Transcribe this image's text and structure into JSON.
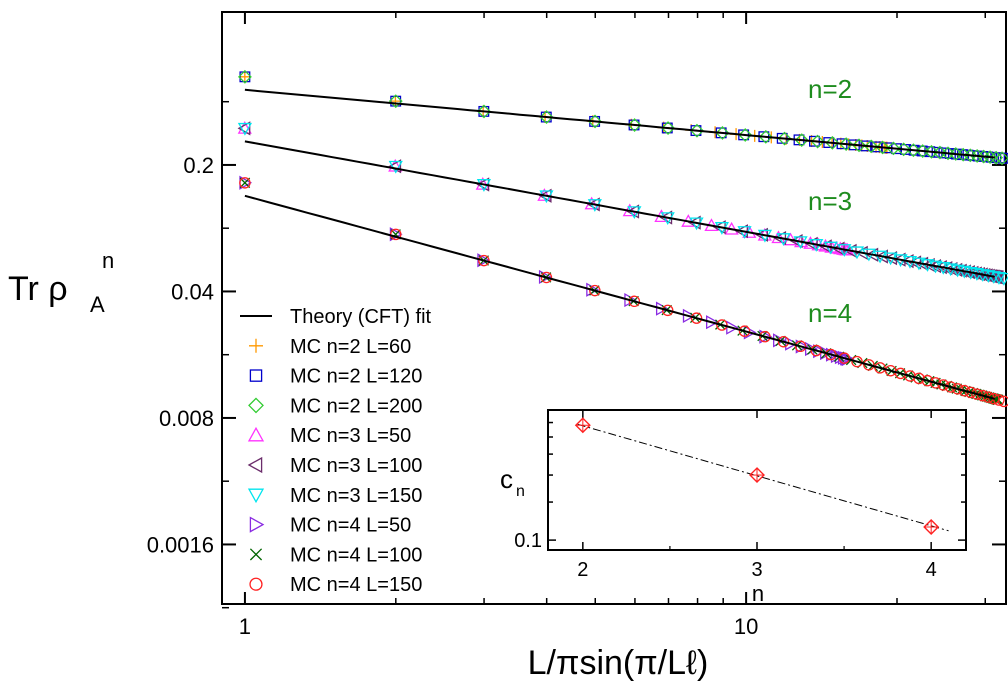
{
  "chart_data": [
    {
      "type": "scatter",
      "xlabel": "L/πsin(π/Lℓ)",
      "ylabel": "Tr ρ",
      "ylabel_sub": "A",
      "ylabel_sup": "n",
      "xscale": "log",
      "yscale": "log",
      "xlim": [
        0.9,
        33
      ],
      "ylim": [
        0.00075,
        1.4
      ],
      "x_ticks": [
        1,
        10
      ],
      "x_tick_labels": [
        "1",
        "10"
      ],
      "y_ticks": [
        0.2,
        0.04,
        0.008,
        0.0016
      ],
      "y_tick_labels": [
        "0.2",
        "0.04",
        "0.008",
        "0.0016"
      ],
      "annotations": [
        "n=2",
        "n=3",
        "n=4"
      ],
      "legend_position": "bottom-left",
      "fit_lines": [
        {
          "n": 2,
          "amp": 0.52,
          "exp": -0.25
        },
        {
          "n": 3,
          "amp": 0.27,
          "exp": -0.5
        },
        {
          "n": 4,
          "amp": 0.135,
          "exp": -0.75
        }
      ],
      "series": [
        {
          "name": "Theory (CFT) fit",
          "marker": "line",
          "color": "#000000"
        },
        {
          "name": "MC n=2  L=60",
          "n": 2,
          "L": 60,
          "marker": "plus",
          "color": "#ff9900"
        },
        {
          "name": "MC n=2  L=120",
          "n": 2,
          "L": 120,
          "marker": "square",
          "color": "#0000cc"
        },
        {
          "name": "MC n=2  L=200",
          "n": 2,
          "L": 200,
          "marker": "diamond",
          "color": "#33cc33"
        },
        {
          "name": "MC n=3  L=50",
          "n": 3,
          "L": 50,
          "marker": "triangle-up",
          "color": "#ff33ff"
        },
        {
          "name": "MC n=3  L=100",
          "n": 3,
          "L": 100,
          "marker": "triangle-left",
          "color": "#6b2d6b"
        },
        {
          "name": "MC n=3  L=150",
          "n": 3,
          "L": 150,
          "marker": "triangle-down",
          "color": "#00e5ee"
        },
        {
          "name": "MC n=4  L=50",
          "n": 4,
          "L": 50,
          "marker": "triangle-right",
          "color": "#8a2be2"
        },
        {
          "name": "MC n=4  L=100",
          "n": 4,
          "L": 100,
          "marker": "cross",
          "color": "#006400"
        },
        {
          "name": "MC n=4  L=150",
          "n": 4,
          "L": 150,
          "marker": "circle",
          "color": "#ff2222"
        }
      ]
    },
    {
      "type": "scatter",
      "title": "",
      "xlabel": "n",
      "ylabel": "c",
      "ylabel_sub": "n",
      "yscale": "log",
      "xlim": [
        1.8,
        4.2
      ],
      "ylim": [
        0.09,
        0.4
      ],
      "x_ticks": [
        2,
        3,
        4
      ],
      "x_tick_labels": [
        "2",
        "3",
        "4"
      ],
      "y_tick_labels": [
        "0.1"
      ],
      "points": [
        {
          "x": 2,
          "y": 0.34
        },
        {
          "x": 3,
          "y": 0.2
        },
        {
          "x": 4,
          "y": 0.115
        }
      ],
      "fit": "dash-dot"
    }
  ]
}
